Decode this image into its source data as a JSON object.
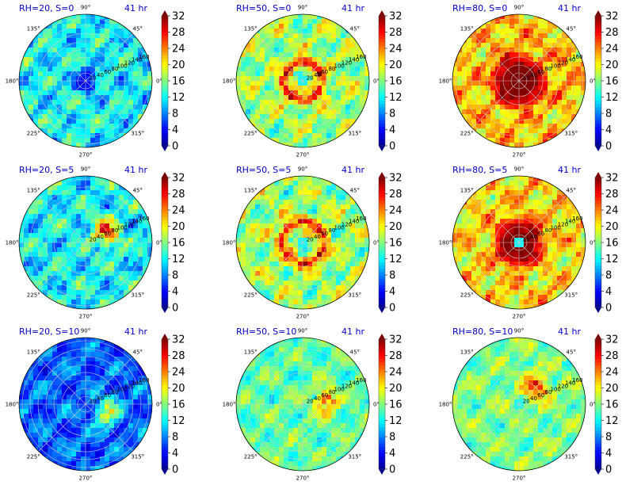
{
  "panel_grid": {
    "rows": 3,
    "cols": 3
  },
  "colormap": {
    "name": "jet",
    "stops": [
      "#00008f",
      "#0000ff",
      "#0080ff",
      "#00ffff",
      "#80ff80",
      "#ffff00",
      "#ff8000",
      "#ff0000",
      "#800000"
    ]
  },
  "chart_data": [
    {
      "type": "heatmap",
      "projection": "polar",
      "title_left": "RH=20, S=0",
      "title_right": "41 hr",
      "angle_ticks": [
        "0°",
        "45°",
        "90°",
        "135°",
        "180°",
        "225°",
        "270°",
        "315°"
      ],
      "radial_ticks": [
        20,
        40,
        60,
        80,
        100,
        120,
        140,
        160
      ],
      "colorbar_ticks": [
        0,
        4,
        8,
        12,
        16,
        20,
        24,
        28,
        32
      ],
      "clim": [
        0,
        32
      ],
      "pattern": {
        "field": "speed",
        "mean": 12,
        "spread": 4,
        "core_value": 4,
        "core_radius": 0.22,
        "ring_value": null,
        "ring_radius": null,
        "eye_radius": null,
        "asym_value": null,
        "asym_angle": null
      }
    },
    {
      "type": "heatmap",
      "projection": "polar",
      "title_left": "RH=50, S=0",
      "title_right": "41 hr",
      "angle_ticks": [
        "0°",
        "45°",
        "90°",
        "135°",
        "180°",
        "225°",
        "270°",
        "315°"
      ],
      "radial_ticks": [
        20,
        40,
        60,
        80,
        100,
        120,
        140,
        160
      ],
      "colorbar_ticks": [
        0,
        4,
        8,
        12,
        16,
        20,
        24,
        28,
        32
      ],
      "clim": [
        0,
        32
      ],
      "pattern": {
        "field": "speed",
        "mean": 17,
        "spread": 4,
        "core_value": null,
        "core_radius": null,
        "ring_value": 28,
        "ring_radius": 0.28,
        "eye_radius": 0.06,
        "asym_value": null,
        "asym_angle": null
      }
    },
    {
      "type": "heatmap",
      "projection": "polar",
      "title_left": "RH=80, S=0",
      "title_right": "41 hr",
      "angle_ticks": [
        "0°",
        "45°",
        "90°",
        "135°",
        "180°",
        "225°",
        "270°",
        "315°"
      ],
      "radial_ticks": [
        20,
        40,
        60,
        80,
        100,
        120,
        140,
        160
      ],
      "colorbar_ticks": [
        0,
        4,
        8,
        12,
        16,
        20,
        24,
        28,
        32
      ],
      "clim": [
        0,
        32
      ],
      "pattern": {
        "field": "speed",
        "mean": 22,
        "spread": 4,
        "core_value": 33,
        "core_radius": 0.48,
        "ring_value": null,
        "ring_radius": null,
        "eye_radius": 0.05,
        "asym_value": null,
        "asym_angle": null
      }
    },
    {
      "type": "heatmap",
      "projection": "polar",
      "title_left": "RH=20, S=5",
      "title_right": "41 hr",
      "angle_ticks": [
        "0°",
        "45°",
        "90°",
        "135°",
        "180°",
        "225°",
        "270°",
        "315°"
      ],
      "radial_ticks": [
        20,
        40,
        60,
        80,
        100,
        120,
        140,
        160
      ],
      "colorbar_ticks": [
        0,
        4,
        8,
        12,
        16,
        20,
        24,
        28,
        32
      ],
      "clim": [
        0,
        32
      ],
      "pattern": {
        "field": "speed",
        "mean": 12,
        "spread": 4,
        "core_value": null,
        "core_radius": null,
        "ring_value": null,
        "ring_radius": null,
        "eye_radius": 0.05,
        "asym_value": 30,
        "asym_angle": 30
      }
    },
    {
      "type": "heatmap",
      "projection": "polar",
      "title_left": "RH=50, S=5",
      "title_right": "41 hr",
      "angle_ticks": [
        "0°",
        "45°",
        "90°",
        "135°",
        "180°",
        "225°",
        "270°",
        "315°"
      ],
      "radial_ticks": [
        20,
        40,
        60,
        80,
        100,
        120,
        140,
        160
      ],
      "colorbar_ticks": [
        0,
        4,
        8,
        12,
        16,
        20,
        24,
        28,
        32
      ],
      "clim": [
        0,
        32
      ],
      "pattern": {
        "field": "speed",
        "mean": 17,
        "spread": 4,
        "core_value": null,
        "core_radius": null,
        "ring_value": 27,
        "ring_radius": 0.32,
        "eye_radius": 0.07,
        "asym_value": null,
        "asym_angle": null
      }
    },
    {
      "type": "heatmap",
      "projection": "polar",
      "title_left": "RH=80, S=5",
      "title_right": "41 hr",
      "angle_ticks": [
        "0°",
        "45°",
        "90°",
        "135°",
        "180°",
        "225°",
        "270°",
        "315°"
      ],
      "radial_ticks": [
        20,
        40,
        60,
        80,
        100,
        120,
        140,
        160
      ],
      "colorbar_ticks": [
        0,
        4,
        8,
        12,
        16,
        20,
        24,
        28,
        32
      ],
      "clim": [
        0,
        32
      ],
      "pattern": {
        "field": "speed",
        "mean": 21,
        "spread": 4,
        "core_value": 33,
        "core_radius": 0.45,
        "ring_value": null,
        "ring_radius": null,
        "eye_radius": 0.06,
        "asym_value": null,
        "asym_angle": null
      }
    },
    {
      "type": "heatmap",
      "projection": "polar",
      "title_left": "RH=20, S=10",
      "title_right": "41 hr",
      "angle_ticks": [
        "0°",
        "45°",
        "90°",
        "135°",
        "180°",
        "225°",
        "270°",
        "315°"
      ],
      "radial_ticks": [
        20,
        40,
        60,
        80,
        100,
        120,
        140,
        160
      ],
      "colorbar_ticks": [
        0,
        4,
        8,
        12,
        16,
        20,
        24,
        28,
        32
      ],
      "clim": [
        0,
        32
      ],
      "pattern": {
        "field": "speed",
        "mean": 7,
        "spread": 3,
        "core_value": null,
        "core_radius": null,
        "ring_value": null,
        "ring_radius": null,
        "eye_radius": null,
        "asym_value": 22,
        "asym_angle": -20
      }
    },
    {
      "type": "heatmap",
      "projection": "polar",
      "title_left": "RH=50, S=10",
      "title_right": "41 hr",
      "angle_ticks": [
        "0°",
        "45°",
        "90°",
        "135°",
        "180°",
        "225°",
        "270°",
        "315°"
      ],
      "radial_ticks": [
        20,
        40,
        60,
        80,
        100,
        120,
        140,
        160
      ],
      "colorbar_ticks": [
        0,
        4,
        8,
        12,
        16,
        20,
        24,
        28,
        32
      ],
      "clim": [
        0,
        32
      ],
      "pattern": {
        "field": "speed",
        "mean": 15,
        "spread": 3,
        "core_value": null,
        "core_radius": null,
        "ring_value": null,
        "ring_radius": null,
        "eye_radius": 0.04,
        "asym_value": 26,
        "asym_angle": 5
      }
    },
    {
      "type": "heatmap",
      "projection": "polar",
      "title_left": "RH=80, S=10",
      "title_right": "41 hr",
      "angle_ticks": [
        "0°",
        "45°",
        "90°",
        "135°",
        "180°",
        "225°",
        "270°",
        "315°"
      ],
      "radial_ticks": [
        20,
        40,
        60,
        80,
        100,
        120,
        140,
        160
      ],
      "colorbar_ticks": [
        0,
        4,
        8,
        12,
        16,
        20,
        24,
        28,
        32
      ],
      "clim": [
        0,
        32
      ],
      "pattern": {
        "field": "speed",
        "mean": 16,
        "spread": 3,
        "core_value": null,
        "core_radius": null,
        "ring_value": null,
        "ring_radius": null,
        "eye_radius": 0.04,
        "asym_value": 29,
        "asym_angle": 45
      }
    }
  ]
}
